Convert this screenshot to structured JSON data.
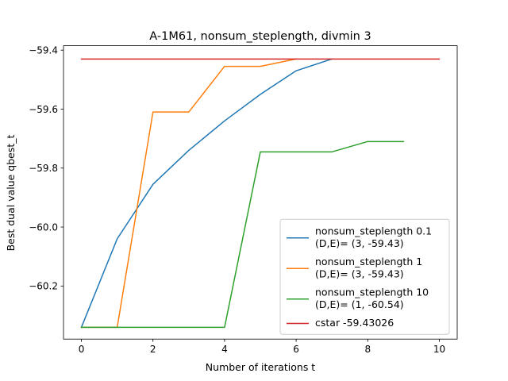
{
  "chart_data": {
    "type": "line",
    "title": "A-1M61, nonsum_steplength, divmin 3",
    "xlabel": "Number of iterations t",
    "ylabel": "Best dual value qbest_t",
    "xlim": [
      -0.5,
      10.5
    ],
    "ylim": [
      -60.38,
      -59.385
    ],
    "xticks": [
      0,
      2,
      4,
      6,
      8,
      10
    ],
    "xtick_labels": [
      "0",
      "2",
      "4",
      "6",
      "8",
      "10"
    ],
    "yticks": [
      -60.2,
      -60.0,
      -59.8,
      -59.6,
      -59.4
    ],
    "ytick_labels": [
      "−60.2",
      "−60.0",
      "−59.8",
      "−59.6",
      "−59.4"
    ],
    "grid": false,
    "legend_position": "lower-right",
    "series": [
      {
        "name": "nonsum_steplength 0.1",
        "legend_lines": [
          "nonsum_steplength 0.1",
          "(D,E)= (3, -59.43)"
        ],
        "color": "#1f77b4",
        "x": [
          0,
          1,
          2,
          3,
          4,
          5,
          6,
          7
        ],
        "y": [
          -60.34,
          -60.04,
          -59.855,
          -59.74,
          -59.64,
          -59.55,
          -59.47,
          -59.43
        ]
      },
      {
        "name": "nonsum_steplength 1",
        "legend_lines": [
          "nonsum_steplength 1",
          "(D,E)= (3, -59.43)"
        ],
        "color": "#ff7f0e",
        "x": [
          0,
          1,
          2,
          3,
          4,
          5,
          6
        ],
        "y": [
          -60.34,
          -60.34,
          -59.61,
          -59.61,
          -59.455,
          -59.455,
          -59.43
        ]
      },
      {
        "name": "nonsum_steplength 10",
        "legend_lines": [
          "nonsum_steplength 10",
          "(D,E)= (1, -60.54)"
        ],
        "color": "#2ca02c",
        "x": [
          0,
          1,
          2,
          3,
          4,
          5,
          6,
          7,
          8,
          9
        ],
        "y": [
          -60.34,
          -60.34,
          -60.34,
          -60.34,
          -60.34,
          -59.745,
          -59.745,
          -59.745,
          -59.71,
          -59.71
        ]
      },
      {
        "name": "cstar -59.43026",
        "legend_lines": [
          "cstar -59.43026"
        ],
        "color": "#d62728",
        "x": [
          0,
          10
        ],
        "y": [
          -59.43026,
          -59.43026
        ]
      }
    ]
  }
}
